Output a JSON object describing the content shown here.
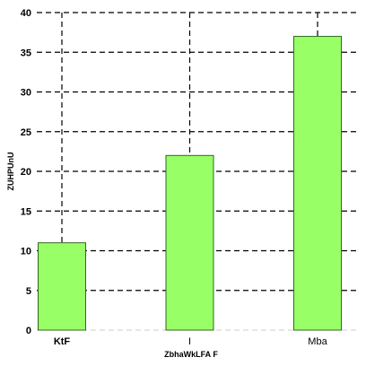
{
  "chart_data": {
    "type": "bar",
    "categories": [
      "KtF",
      "I",
      "Mba"
    ],
    "category_bold": [
      true,
      false,
      false
    ],
    "values": [
      11,
      22,
      37
    ],
    "xlabel": "ZbhaWkLFA F",
    "ylabel": "ZUHPUnU",
    "ylim": [
      0,
      40
    ],
    "yticks": [
      0,
      5,
      10,
      15,
      20,
      25,
      30,
      35,
      40
    ],
    "grid": true,
    "grid_style": "dashed",
    "bar_color": "#99ff66",
    "bar_edge_color": "#336622",
    "legend": "none"
  }
}
